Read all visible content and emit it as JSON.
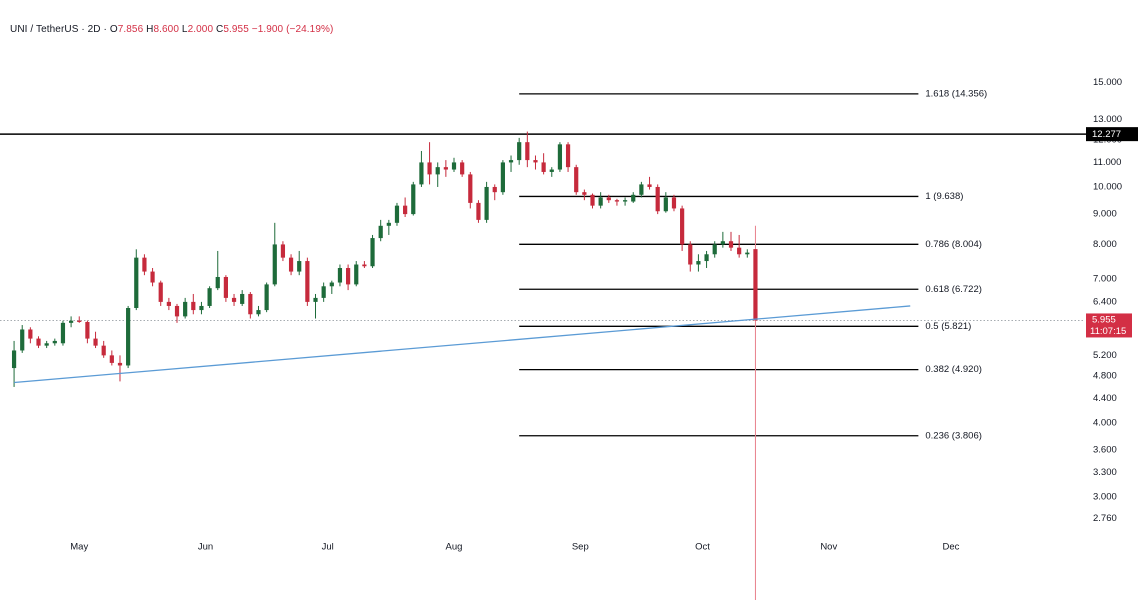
{
  "legend": {
    "symbol": "UNI / TetherUS · 2D ·",
    "open_label": "O",
    "open_value": "7.856",
    "high_label": "H",
    "high_value": "8.600",
    "low_label": "L",
    "low_value": "2.000",
    "close_label": "C",
    "close_value": "5.955",
    "change": "−1.900 (−24.19%)"
  },
  "colors": {
    "up": "#1e6b3a",
    "down": "#c62a3c",
    "trendline": "#5b9bd5",
    "last_price": "#d32f45",
    "hline": "#000000",
    "fib": "#000000",
    "background": "#ffffff"
  },
  "chart_data": {
    "type": "candlestick",
    "instrument": "UNI / TetherUS",
    "timeframe": "2D",
    "y_scale": "log",
    "ylim": [
      2.66,
      16.5
    ],
    "xlim": [
      "2024-04-14",
      "2024-12-15"
    ],
    "y_ticks": [
      "15.000",
      "13.000",
      "12.000",
      "11.000",
      "10.000",
      "9.000",
      "8.000",
      "7.000",
      "6.400",
      "5.200",
      "4.800",
      "4.400",
      "4.000",
      "3.600",
      "3.300",
      "3.000",
      "2.760"
    ],
    "x_ticks": [
      {
        "date": "2024-05-01",
        "label": "May"
      },
      {
        "date": "2024-06-01",
        "label": "Jun"
      },
      {
        "date": "2024-07-01",
        "label": "Jul"
      },
      {
        "date": "2024-08-01",
        "label": "Aug"
      },
      {
        "date": "2024-09-01",
        "label": "Sep"
      },
      {
        "date": "2024-10-01",
        "label": "Oct"
      },
      {
        "date": "2024-11-01",
        "label": "Nov"
      },
      {
        "date": "2024-12-01",
        "label": "Dec"
      }
    ],
    "candles": [
      {
        "date": "2024-04-15",
        "o": 4.95,
        "h": 5.5,
        "l": 4.6,
        "c": 5.3
      },
      {
        "date": "2024-04-17",
        "o": 5.3,
        "h": 5.85,
        "l": 5.25,
        "c": 5.75
      },
      {
        "date": "2024-04-19",
        "o": 5.75,
        "h": 5.8,
        "l": 5.45,
        "c": 5.55
      },
      {
        "date": "2024-04-21",
        "o": 5.55,
        "h": 5.6,
        "l": 5.35,
        "c": 5.4
      },
      {
        "date": "2024-04-23",
        "o": 5.4,
        "h": 5.5,
        "l": 5.35,
        "c": 5.45
      },
      {
        "date": "2024-04-25",
        "o": 5.45,
        "h": 5.55,
        "l": 5.4,
        "c": 5.5
      },
      {
        "date": "2024-04-27",
        "o": 5.45,
        "h": 5.95,
        "l": 5.4,
        "c": 5.9
      },
      {
        "date": "2024-04-29",
        "o": 5.9,
        "h": 6.05,
        "l": 5.8,
        "c": 5.95
      },
      {
        "date": "2024-05-01",
        "o": 5.95,
        "h": 6.05,
        "l": 5.9,
        "c": 5.92
      },
      {
        "date": "2024-05-03",
        "o": 5.92,
        "h": 5.95,
        "l": 5.45,
        "c": 5.55
      },
      {
        "date": "2024-05-05",
        "o": 5.55,
        "h": 5.7,
        "l": 5.35,
        "c": 5.4
      },
      {
        "date": "2024-05-07",
        "o": 5.4,
        "h": 5.5,
        "l": 5.15,
        "c": 5.2
      },
      {
        "date": "2024-05-09",
        "o": 5.2,
        "h": 5.3,
        "l": 5.0,
        "c": 5.05
      },
      {
        "date": "2024-05-11",
        "o": 5.05,
        "h": 5.2,
        "l": 4.7,
        "c": 5.0
      },
      {
        "date": "2024-05-13",
        "o": 5.0,
        "h": 6.3,
        "l": 4.95,
        "c": 6.25
      },
      {
        "date": "2024-05-15",
        "o": 6.25,
        "h": 7.85,
        "l": 6.2,
        "c": 7.6
      },
      {
        "date": "2024-05-17",
        "o": 7.6,
        "h": 7.7,
        "l": 7.1,
        "c": 7.2
      },
      {
        "date": "2024-05-19",
        "o": 7.2,
        "h": 7.3,
        "l": 6.8,
        "c": 6.9
      },
      {
        "date": "2024-05-21",
        "o": 6.9,
        "h": 6.95,
        "l": 6.3,
        "c": 6.4
      },
      {
        "date": "2024-05-23",
        "o": 6.4,
        "h": 6.5,
        "l": 6.2,
        "c": 6.3
      },
      {
        "date": "2024-05-25",
        "o": 6.3,
        "h": 6.35,
        "l": 5.9,
        "c": 6.05
      },
      {
        "date": "2024-05-27",
        "o": 6.05,
        "h": 6.5,
        "l": 6.0,
        "c": 6.4
      },
      {
        "date": "2024-05-29",
        "o": 6.4,
        "h": 6.6,
        "l": 6.1,
        "c": 6.2
      },
      {
        "date": "2024-05-31",
        "o": 6.2,
        "h": 6.4,
        "l": 6.1,
        "c": 6.3
      },
      {
        "date": "2024-06-02",
        "o": 6.3,
        "h": 6.8,
        "l": 6.25,
        "c": 6.75
      },
      {
        "date": "2024-06-04",
        "o": 6.75,
        "h": 7.8,
        "l": 6.7,
        "c": 7.05
      },
      {
        "date": "2024-06-06",
        "o": 7.05,
        "h": 7.1,
        "l": 6.4,
        "c": 6.5
      },
      {
        "date": "2024-06-08",
        "o": 6.5,
        "h": 6.6,
        "l": 6.3,
        "c": 6.4
      },
      {
        "date": "2024-06-10",
        "o": 6.35,
        "h": 6.7,
        "l": 6.3,
        "c": 6.6
      },
      {
        "date": "2024-06-12",
        "o": 6.6,
        "h": 6.65,
        "l": 6.0,
        "c": 6.1
      },
      {
        "date": "2024-06-14",
        "o": 6.1,
        "h": 6.3,
        "l": 6.05,
        "c": 6.2
      },
      {
        "date": "2024-06-16",
        "o": 6.2,
        "h": 6.9,
        "l": 6.15,
        "c": 6.85
      },
      {
        "date": "2024-06-18",
        "o": 6.85,
        "h": 8.7,
        "l": 6.8,
        "c": 8.0
      },
      {
        "date": "2024-06-20",
        "o": 8.0,
        "h": 8.1,
        "l": 7.5,
        "c": 7.6
      },
      {
        "date": "2024-06-22",
        "o": 7.6,
        "h": 7.7,
        "l": 7.1,
        "c": 7.2
      },
      {
        "date": "2024-06-24",
        "o": 7.2,
        "h": 7.8,
        "l": 7.1,
        "c": 7.5
      },
      {
        "date": "2024-06-26",
        "o": 7.5,
        "h": 7.6,
        "l": 6.3,
        "c": 6.4
      },
      {
        "date": "2024-06-28",
        "o": 6.4,
        "h": 6.6,
        "l": 6.0,
        "c": 6.5
      },
      {
        "date": "2024-06-30",
        "o": 6.5,
        "h": 6.9,
        "l": 6.4,
        "c": 6.8
      },
      {
        "date": "2024-07-02",
        "o": 6.8,
        "h": 6.95,
        "l": 6.6,
        "c": 6.9
      },
      {
        "date": "2024-07-04",
        "o": 6.9,
        "h": 7.4,
        "l": 6.8,
        "c": 7.3
      },
      {
        "date": "2024-07-06",
        "o": 7.3,
        "h": 7.4,
        "l": 6.7,
        "c": 6.85
      },
      {
        "date": "2024-07-08",
        "o": 6.85,
        "h": 7.5,
        "l": 6.8,
        "c": 7.4
      },
      {
        "date": "2024-07-10",
        "o": 7.4,
        "h": 7.5,
        "l": 7.3,
        "c": 7.35
      },
      {
        "date": "2024-07-12",
        "o": 7.35,
        "h": 8.3,
        "l": 7.3,
        "c": 8.2
      },
      {
        "date": "2024-07-14",
        "o": 8.2,
        "h": 8.8,
        "l": 8.1,
        "c": 8.6
      },
      {
        "date": "2024-07-16",
        "o": 8.6,
        "h": 8.8,
        "l": 8.3,
        "c": 8.7
      },
      {
        "date": "2024-07-18",
        "o": 8.7,
        "h": 9.4,
        "l": 8.6,
        "c": 9.3
      },
      {
        "date": "2024-07-20",
        "o": 9.3,
        "h": 9.6,
        "l": 8.9,
        "c": 9.0
      },
      {
        "date": "2024-07-22",
        "o": 9.0,
        "h": 10.2,
        "l": 8.95,
        "c": 10.1
      },
      {
        "date": "2024-07-24",
        "o": 10.1,
        "h": 11.5,
        "l": 10.0,
        "c": 11.0
      },
      {
        "date": "2024-07-26",
        "o": 11.0,
        "h": 11.9,
        "l": 10.1,
        "c": 10.5
      },
      {
        "date": "2024-07-28",
        "o": 10.5,
        "h": 11.0,
        "l": 10.0,
        "c": 10.8
      },
      {
        "date": "2024-07-30",
        "o": 10.8,
        "h": 11.1,
        "l": 10.4,
        "c": 10.7
      },
      {
        "date": "2024-08-01",
        "o": 10.7,
        "h": 11.2,
        "l": 10.6,
        "c": 11.0
      },
      {
        "date": "2024-08-03",
        "o": 11.0,
        "h": 11.1,
        "l": 10.4,
        "c": 10.5
      },
      {
        "date": "2024-08-05",
        "o": 10.5,
        "h": 10.6,
        "l": 9.2,
        "c": 9.4
      },
      {
        "date": "2024-08-07",
        "o": 9.4,
        "h": 9.5,
        "l": 8.7,
        "c": 8.8
      },
      {
        "date": "2024-08-09",
        "o": 8.8,
        "h": 10.2,
        "l": 8.7,
        "c": 10.0
      },
      {
        "date": "2024-08-11",
        "o": 10.0,
        "h": 10.1,
        "l": 9.5,
        "c": 9.8
      },
      {
        "date": "2024-08-13",
        "o": 9.8,
        "h": 11.1,
        "l": 9.7,
        "c": 11.0
      },
      {
        "date": "2024-08-15",
        "o": 11.0,
        "h": 11.3,
        "l": 10.6,
        "c": 11.1
      },
      {
        "date": "2024-08-17",
        "o": 11.1,
        "h": 12.1,
        "l": 10.9,
        "c": 11.9
      },
      {
        "date": "2024-08-19",
        "o": 11.9,
        "h": 12.4,
        "l": 10.8,
        "c": 11.1
      },
      {
        "date": "2024-08-21",
        "o": 11.1,
        "h": 11.3,
        "l": 10.7,
        "c": 11.0
      },
      {
        "date": "2024-08-23",
        "o": 11.0,
        "h": 11.4,
        "l": 10.5,
        "c": 10.6
      },
      {
        "date": "2024-08-25",
        "o": 10.6,
        "h": 10.8,
        "l": 10.4,
        "c": 10.7
      },
      {
        "date": "2024-08-27",
        "o": 10.7,
        "h": 11.9,
        "l": 10.6,
        "c": 11.8
      },
      {
        "date": "2024-08-29",
        "o": 11.8,
        "h": 11.9,
        "l": 10.6,
        "c": 10.8
      },
      {
        "date": "2024-08-31",
        "o": 10.8,
        "h": 10.9,
        "l": 9.7,
        "c": 9.8
      },
      {
        "date": "2024-09-02",
        "o": 9.8,
        "h": 9.9,
        "l": 9.5,
        "c": 9.7
      },
      {
        "date": "2024-09-04",
        "o": 9.7,
        "h": 9.75,
        "l": 9.2,
        "c": 9.3
      },
      {
        "date": "2024-09-06",
        "o": 9.3,
        "h": 9.8,
        "l": 9.2,
        "c": 9.6
      },
      {
        "date": "2024-09-08",
        "o": 9.6,
        "h": 9.7,
        "l": 9.4,
        "c": 9.5
      },
      {
        "date": "2024-09-10",
        "o": 9.5,
        "h": 9.55,
        "l": 9.3,
        "c": 9.45
      },
      {
        "date": "2024-09-12",
        "o": 9.45,
        "h": 9.6,
        "l": 9.3,
        "c": 9.5
      },
      {
        "date": "2024-09-14",
        "o": 9.45,
        "h": 9.8,
        "l": 9.4,
        "c": 9.7
      },
      {
        "date": "2024-09-16",
        "o": 9.7,
        "h": 10.2,
        "l": 9.6,
        "c": 10.1
      },
      {
        "date": "2024-09-18",
        "o": 10.1,
        "h": 10.4,
        "l": 9.9,
        "c": 10.0
      },
      {
        "date": "2024-09-20",
        "o": 10.0,
        "h": 10.1,
        "l": 9.0,
        "c": 9.1
      },
      {
        "date": "2024-09-22",
        "o": 9.1,
        "h": 9.8,
        "l": 9.05,
        "c": 9.6
      },
      {
        "date": "2024-09-24",
        "o": 9.6,
        "h": 9.7,
        "l": 9.1,
        "c": 9.2
      },
      {
        "date": "2024-09-26",
        "o": 9.2,
        "h": 9.3,
        "l": 7.8,
        "c": 8.0
      },
      {
        "date": "2024-09-28",
        "o": 8.0,
        "h": 8.1,
        "l": 7.2,
        "c": 7.4
      },
      {
        "date": "2024-09-30",
        "o": 7.4,
        "h": 7.7,
        "l": 7.2,
        "c": 7.5
      },
      {
        "date": "2024-10-02",
        "o": 7.5,
        "h": 7.8,
        "l": 7.3,
        "c": 7.7
      },
      {
        "date": "2024-10-04",
        "o": 7.7,
        "h": 8.1,
        "l": 7.6,
        "c": 8.0
      },
      {
        "date": "2024-10-06",
        "o": 8.0,
        "h": 8.4,
        "l": 7.9,
        "c": 8.1
      },
      {
        "date": "2024-10-08",
        "o": 8.1,
        "h": 8.4,
        "l": 7.8,
        "c": 7.9
      },
      {
        "date": "2024-10-10",
        "o": 7.9,
        "h": 8.3,
        "l": 7.6,
        "c": 7.7
      },
      {
        "date": "2024-10-12",
        "o": 7.7,
        "h": 7.85,
        "l": 7.6,
        "c": 7.75
      },
      {
        "date": "2024-10-14",
        "o": 7.856,
        "h": 8.6,
        "l": 2.0,
        "c": 5.955
      }
    ],
    "resistance_line": {
      "value": 12.277,
      "label": "12.277"
    },
    "trendline": {
      "start": {
        "date": "2024-04-15",
        "value": 4.68
      },
      "end": {
        "date": "2024-11-21",
        "value": 6.3
      }
    },
    "fib_levels": [
      {
        "ratio": "1.618",
        "value": 14.356,
        "label": "1.618 (14.356)"
      },
      {
        "ratio": "1",
        "value": 9.638,
        "label": "1 (9.638)"
      },
      {
        "ratio": "0.786",
        "value": 8.004,
        "label": "0.786 (8.004)"
      },
      {
        "ratio": "0.618",
        "value": 6.722,
        "label": "0.618 (6.722)"
      },
      {
        "ratio": "0.5",
        "value": 5.821,
        "label": "0.5 (5.821)"
      },
      {
        "ratio": "0.382",
        "value": 4.92,
        "label": "0.382 (4.920)"
      },
      {
        "ratio": "0.236",
        "value": 3.806,
        "label": "0.236 (3.806)"
      }
    ],
    "fib_start_date": "2024-08-17",
    "fib_end_date": "2024-11-23",
    "last_price": {
      "value": 5.955,
      "label": "5.955",
      "countdown": "11:07:15"
    }
  }
}
